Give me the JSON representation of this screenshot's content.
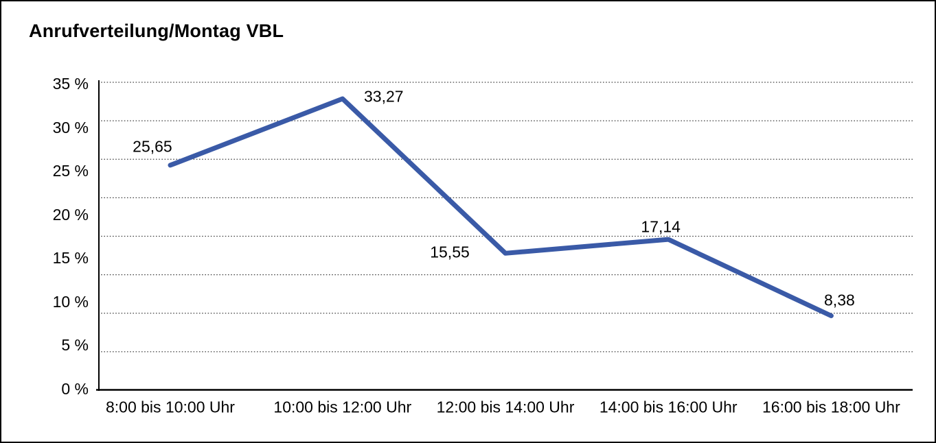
{
  "title": "Anrufverteilung/Montag VBL",
  "colors": {
    "background": "#FFFFFF",
    "frame_border": "#000000",
    "axis": "#000000",
    "gridline": "#404040",
    "line": "#3A5AA7",
    "text": "#000000"
  },
  "chart_data": {
    "type": "line",
    "title": "Anrufverteilung/Montag VBL",
    "categories": [
      "8:00 bis 10:00 Uhr",
      "10:00 bis 12:00 Uhr",
      "12:00 bis 14:00 Uhr",
      "14:00 bis 16:00 Uhr",
      "16:00 bis 18:00 Uhr"
    ],
    "values": [
      25.65,
      33.27,
      15.55,
      17.14,
      8.38
    ],
    "point_labels": [
      "25,65",
      "33,27",
      "15,55",
      "17,14",
      "8,38"
    ],
    "xlabel": "",
    "ylabel": "",
    "ylim": [
      0,
      35
    ],
    "ytick_labels": [
      "35 %",
      "30 %",
      "25 %",
      "20 %",
      "15 %",
      "10 %",
      "5 %",
      "0 %"
    ],
    "grid": "horizontal-dotted",
    "legend": "none"
  }
}
